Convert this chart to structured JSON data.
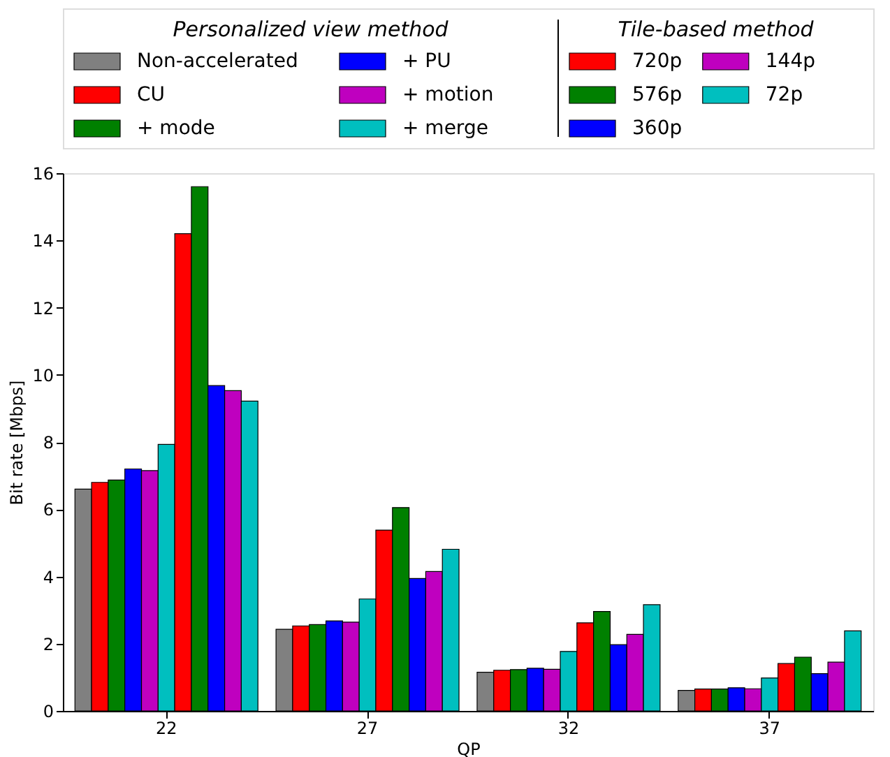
{
  "chart_data": {
    "type": "bar",
    "xlabel": "QP",
    "ylabel": "Bit rate [Mbps]",
    "categories": [
      "22",
      "27",
      "32",
      "37"
    ],
    "series": [
      {
        "name": "Non-accelerated",
        "color": "#808080",
        "values": [
          6.6,
          2.43,
          1.15,
          0.61
        ]
      },
      {
        "name": "CU",
        "color": "#ff0000",
        "values": [
          6.8,
          2.53,
          1.21,
          0.65
        ]
      },
      {
        "name": "+ mode",
        "color": "#008000",
        "values": [
          6.87,
          2.57,
          1.23,
          0.65
        ]
      },
      {
        "name": "+ PU",
        "color": "#0000ff",
        "values": [
          7.2,
          2.68,
          1.27,
          0.69
        ]
      },
      {
        "name": "+ motion",
        "color": "#bf00bf",
        "values": [
          7.15,
          2.64,
          1.24,
          0.66
        ]
      },
      {
        "name": "+ merge",
        "color": "#00bfbf",
        "values": [
          7.93,
          3.33,
          1.77,
          0.98
        ]
      },
      {
        "name": "720p",
        "color": "#ff0000",
        "values": [
          14.2,
          5.38,
          2.62,
          1.41
        ]
      },
      {
        "name": "576p",
        "color": "#008000",
        "values": [
          15.6,
          6.05,
          2.96,
          1.6
        ]
      },
      {
        "name": "360p",
        "color": "#0000ff",
        "values": [
          9.68,
          3.94,
          1.97,
          1.11
        ]
      },
      {
        "name": "144p",
        "color": "#bf00bf",
        "values": [
          9.53,
          4.15,
          2.28,
          1.45
        ]
      },
      {
        "name": "72p",
        "color": "#00bfbf",
        "values": [
          9.22,
          4.81,
          3.16,
          2.38
        ]
      }
    ],
    "ylim": [
      0,
      16
    ],
    "yticks": [
      0,
      2,
      4,
      6,
      8,
      10,
      12,
      14,
      16
    ],
    "grid": false,
    "legend": "top",
    "annotations": [
      "Personalized view method",
      "Tile-based method"
    ]
  }
}
